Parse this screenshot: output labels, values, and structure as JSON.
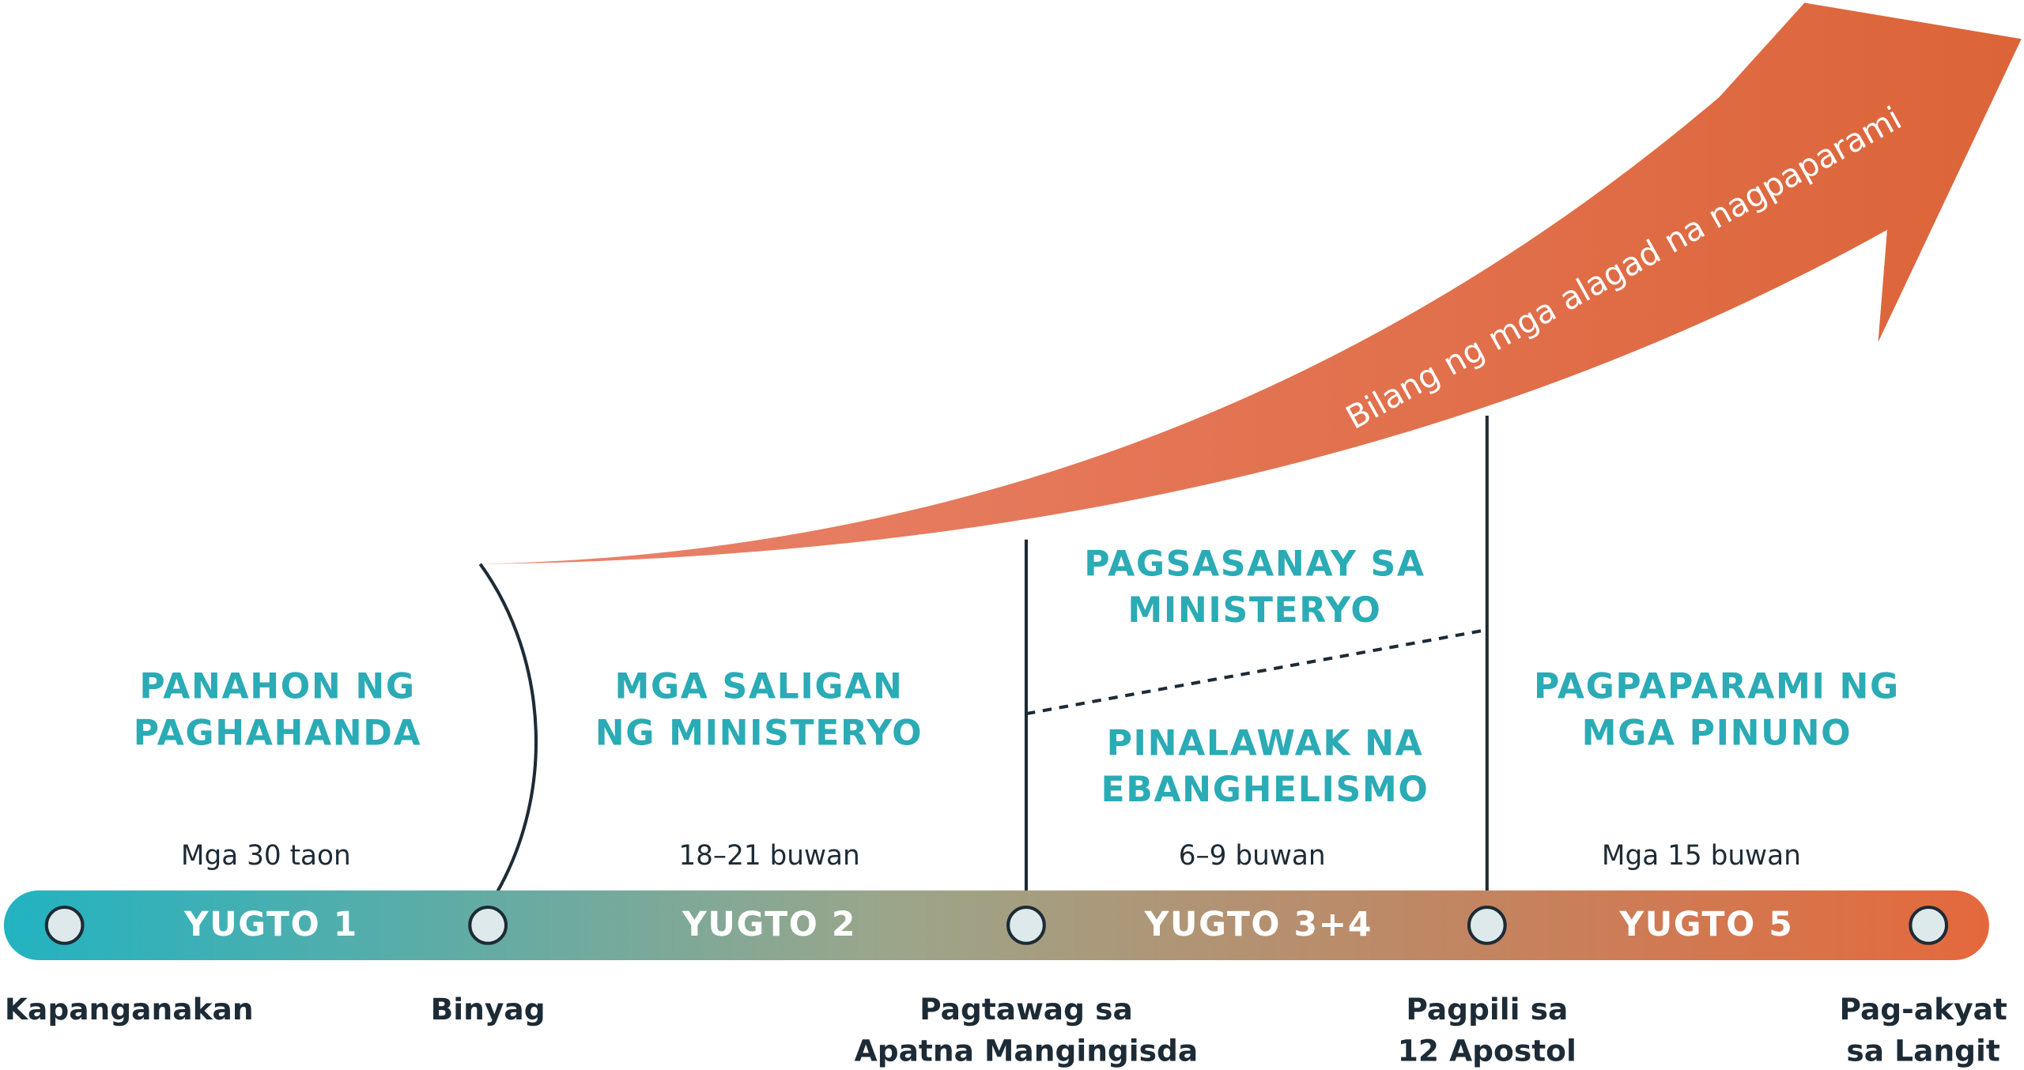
{
  "arrow_label": "Bilang ng mga alagad na nagpaparami",
  "phases": [
    {
      "lines": [
        "PANAHON NG",
        "PAGHAHANDA"
      ]
    },
    {
      "lines": [
        "MGA SALIGAN",
        "NG MINISTERYO"
      ]
    },
    {
      "lines": [
        "PAGSASANAY SA",
        "MINISTERYO"
      ]
    },
    {
      "lines": [
        "PINALAWAK NA",
        "EBANGHELISMO"
      ]
    },
    {
      "lines": [
        "PAGPAPARAMI NG",
        "MGA PINUNO"
      ]
    }
  ],
  "durations": [
    "Mga 30 taon",
    "18–21 buwan",
    "6–9 buwan",
    "Mga 15 buwan"
  ],
  "stages": [
    "YUGTO 1",
    "YUGTO 2",
    "YUGTO 3+4",
    "YUGTO 5"
  ],
  "milestones": [
    {
      "lines": [
        "Kapanganakan"
      ]
    },
    {
      "lines": [
        "Binyag"
      ]
    },
    {
      "lines": [
        "Pagtawag sa",
        "Apatna Mangingisda"
      ]
    },
    {
      "lines": [
        "Pagpili sa",
        "12 Apostol"
      ]
    },
    {
      "lines": [
        "Pag-akyat",
        "sa Langit"
      ]
    }
  ]
}
